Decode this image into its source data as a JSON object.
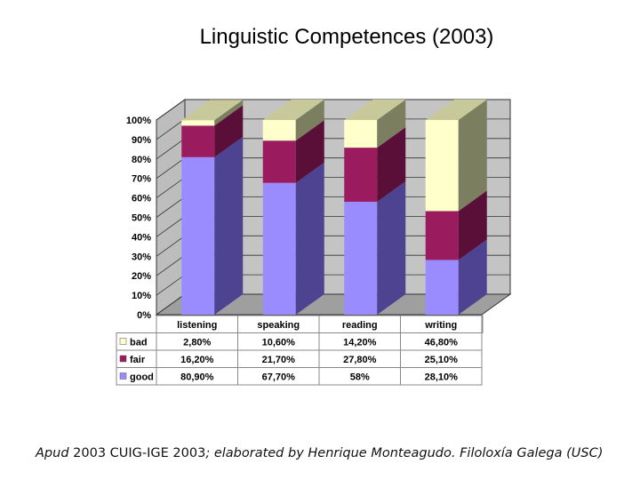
{
  "chart_data": {
    "type": "bar",
    "stacked": true,
    "title": "Linguistic Competences (2003)",
    "categories": [
      "listening",
      "speaking",
      "reading",
      "writing"
    ],
    "series": [
      {
        "name": "good",
        "values": [
          80.9,
          67.7,
          58,
          28.1
        ],
        "labels": [
          "80,90%",
          "67,70%",
          "58%",
          "28,10%"
        ],
        "color": "#9a8cff"
      },
      {
        "name": "fair",
        "values": [
          16.2,
          21.7,
          27.8,
          25.1
        ],
        "labels": [
          "16,20%",
          "21,70%",
          "27,80%",
          "25,10%"
        ],
        "color": "#9b1b5f"
      },
      {
        "name": "bad",
        "values": [
          2.8,
          10.6,
          14.2,
          46.8
        ],
        "labels": [
          "2,80%",
          "10,60%",
          "14,20%",
          "46,80%"
        ],
        "color": "#ffffcc"
      }
    ],
    "y_ticks": [
      "0%",
      "10%",
      "20%",
      "30%",
      "40%",
      "50%",
      "60%",
      "70%",
      "80%",
      "90%",
      "100%"
    ],
    "ylim": [
      0,
      100
    ],
    "grid": true
  },
  "caption": {
    "part1": "Apud",
    "part2": " 2003 CUIG-IGE 2003",
    "part3": "; elaborated by Henrique Monteagudo. Filoloxía Galega (USC)"
  }
}
